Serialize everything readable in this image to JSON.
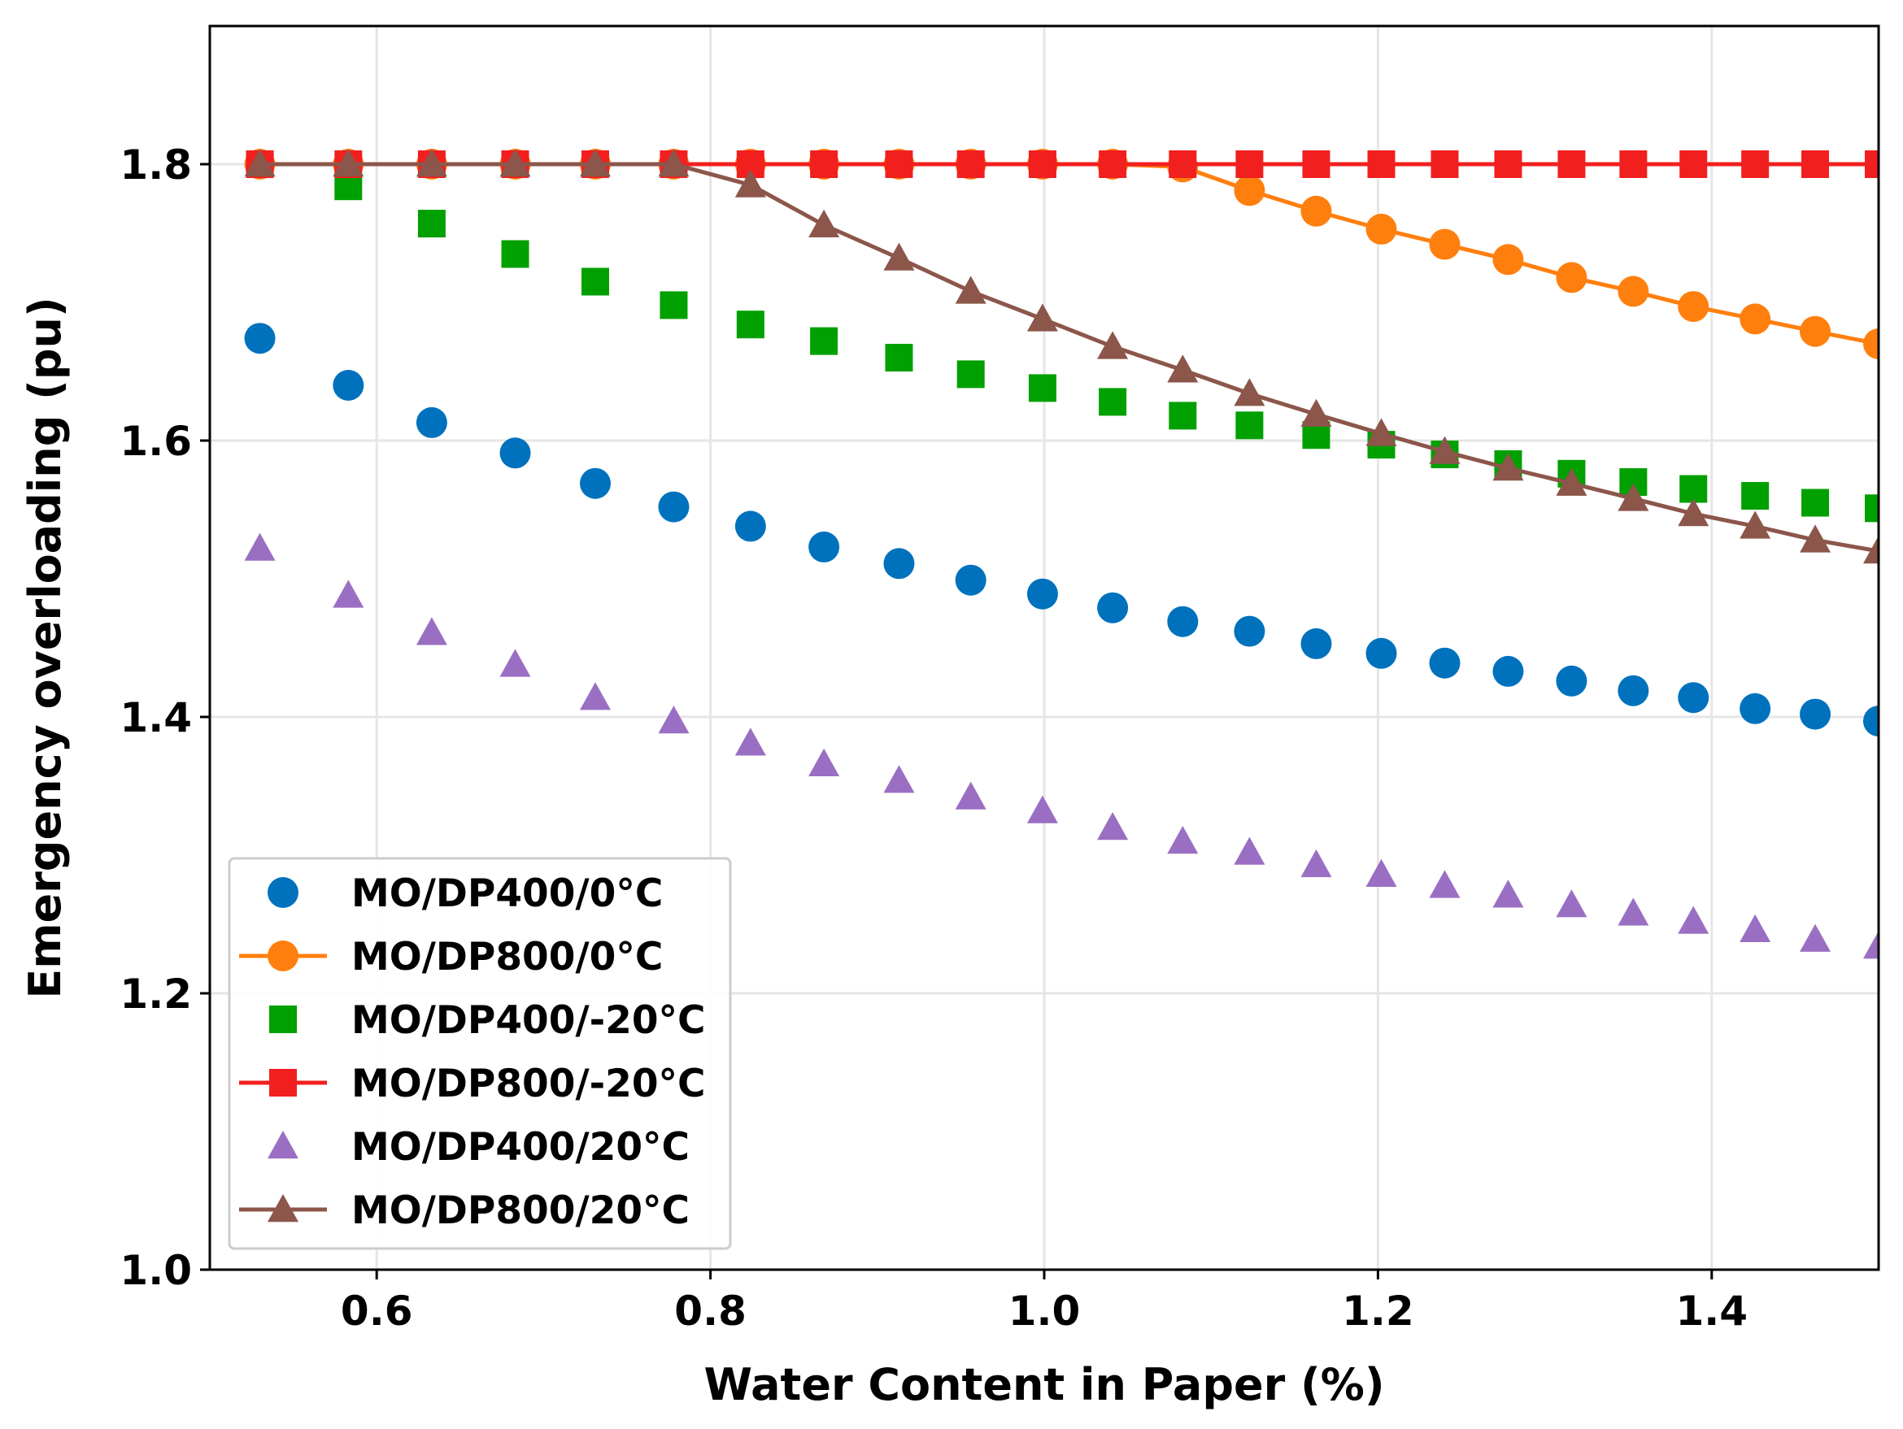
{
  "chart_data": {
    "type": "scatter",
    "title": "",
    "xlabel": "Water Content in Paper (%)",
    "ylabel": "Emergency overloading (pu)",
    "xlim": [
      0.5,
      1.5
    ],
    "ylim": [
      1.0,
      1.9
    ],
    "xticks": [
      0.6,
      0.8,
      1.0,
      1.2,
      1.4
    ],
    "yticks": [
      1.0,
      1.2,
      1.4,
      1.6,
      1.8
    ],
    "xtick_labels": [
      "0.6",
      "0.8",
      "1.0",
      "1.2",
      "1.4"
    ],
    "ytick_labels": [
      "1.0",
      "1.2",
      "1.4",
      "1.6",
      "1.8"
    ],
    "grid": true,
    "legend_position": "lower-left",
    "x": [
      0.53,
      0.583,
      0.633,
      0.683,
      0.731,
      0.778,
      0.824,
      0.868,
      0.913,
      0.956,
      0.999,
      1.041,
      1.083,
      1.123,
      1.163,
      1.202,
      1.24,
      1.278,
      1.316,
      1.353,
      1.389,
      1.426,
      1.462,
      1.5
    ],
    "series": [
      {
        "name": "MO/DP400/0°C",
        "color": "#0072BD",
        "marker": "circle",
        "line": false,
        "values": [
          1.674,
          1.64,
          1.613,
          1.591,
          1.569,
          1.552,
          1.538,
          1.523,
          1.511,
          1.499,
          1.489,
          1.479,
          1.469,
          1.462,
          1.453,
          1.446,
          1.439,
          1.433,
          1.426,
          1.419,
          1.414,
          1.406,
          1.402,
          1.397
        ]
      },
      {
        "name": "MO/DP800/0°C",
        "color": "#FF7F0E",
        "marker": "circle",
        "line": true,
        "values": [
          1.8,
          1.8,
          1.8,
          1.8,
          1.8,
          1.8,
          1.8,
          1.8,
          1.8,
          1.8,
          1.8,
          1.8,
          1.798,
          1.781,
          1.766,
          1.753,
          1.742,
          1.731,
          1.718,
          1.708,
          1.697,
          1.688,
          1.679,
          1.67
        ]
      },
      {
        "name": "MO/DP400/-20°C",
        "color": "#00A000",
        "marker": "square",
        "line": false,
        "values": [
          1.8,
          1.784,
          1.757,
          1.735,
          1.715,
          1.698,
          1.684,
          1.672,
          1.66,
          1.648,
          1.638,
          1.628,
          1.618,
          1.611,
          1.604,
          1.597,
          1.59,
          1.583,
          1.576,
          1.57,
          1.565,
          1.56,
          1.555,
          1.551
        ]
      },
      {
        "name": "MO/DP800/-20°C",
        "color": "#F21F1F",
        "marker": "square",
        "line": true,
        "values": [
          1.8,
          1.8,
          1.8,
          1.8,
          1.8,
          1.8,
          1.8,
          1.8,
          1.8,
          1.8,
          1.8,
          1.8,
          1.8,
          1.8,
          1.8,
          1.8,
          1.8,
          1.8,
          1.8,
          1.8,
          1.8,
          1.8,
          1.8,
          1.8
        ]
      },
      {
        "name": "MO/DP400/20°C",
        "color": "#9A6FC3",
        "marker": "triangle",
        "line": false,
        "values": [
          1.522,
          1.488,
          1.461,
          1.438,
          1.414,
          1.397,
          1.381,
          1.366,
          1.354,
          1.342,
          1.332,
          1.32,
          1.31,
          1.302,
          1.293,
          1.286,
          1.278,
          1.271,
          1.264,
          1.258,
          1.252,
          1.246,
          1.239,
          1.234
        ]
      },
      {
        "name": "MO/DP800/20°C",
        "color": "#8C564B",
        "marker": "triangle",
        "line": true,
        "values": [
          1.8,
          1.8,
          1.8,
          1.8,
          1.8,
          1.8,
          1.785,
          1.756,
          1.732,
          1.708,
          1.688,
          1.668,
          1.651,
          1.634,
          1.619,
          1.605,
          1.592,
          1.58,
          1.569,
          1.558,
          1.547,
          1.538,
          1.528,
          1.52
        ]
      }
    ]
  }
}
